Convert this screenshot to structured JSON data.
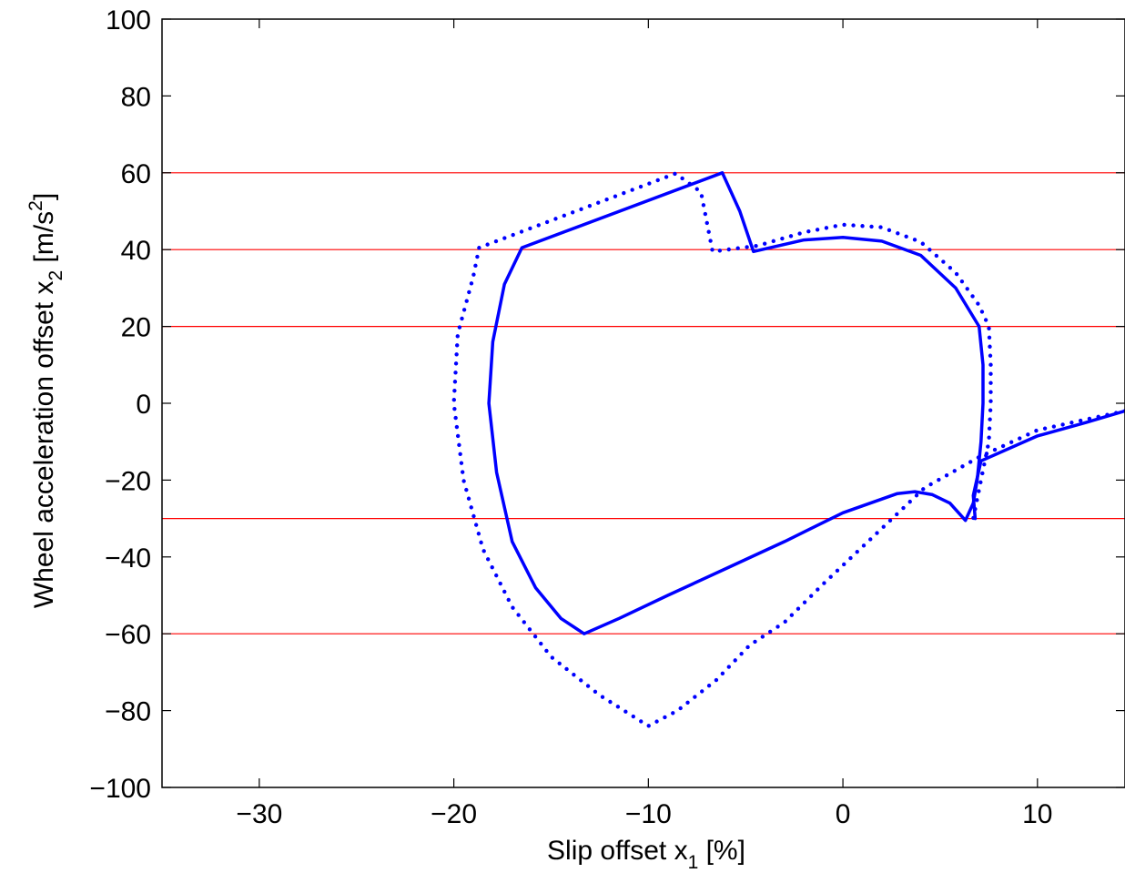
{
  "chart_data": {
    "type": "scatter",
    "title": "",
    "xlabel": {
      "main": "Slip offset x",
      "sub": "1",
      "tail": " [%]"
    },
    "ylabel": {
      "main": "Wheel acceleration offset x",
      "sub": "2",
      "mid": " [m/s",
      "sup": "2",
      "tail": "]"
    },
    "xlim": [
      -35,
      14.5
    ],
    "ylim": [
      -100,
      100
    ],
    "xticks": [
      -30,
      -20,
      -10,
      0,
      10
    ],
    "xtick_labels": [
      "−30",
      "−20",
      "−10",
      "0",
      "10"
    ],
    "yticks": [
      100,
      80,
      60,
      40,
      20,
      0,
      -20,
      -40,
      -60,
      -80,
      -100
    ],
    "ytick_labels": [
      "100",
      "80",
      "60",
      "40",
      "20",
      "0",
      "−20",
      "−40",
      "−60",
      "−80",
      "−100"
    ],
    "grid": false,
    "legend": "none",
    "threshold_lines": {
      "color": "#ff0000",
      "y": [
        60,
        40,
        20,
        -30,
        -60
      ]
    },
    "series": [
      {
        "style": "dots",
        "color": "#0000ff",
        "points": [
          [
            14.5,
            -2
          ],
          [
            10,
            -7
          ],
          [
            7,
            -14
          ],
          [
            4.2,
            -22
          ],
          [
            1.5,
            -35
          ],
          [
            -1,
            -47
          ],
          [
            -3,
            -57
          ],
          [
            -4.8,
            -63
          ],
          [
            -6.5,
            -72
          ],
          [
            -8.5,
            -80
          ],
          [
            -10,
            -84
          ],
          [
            -12.5,
            -76
          ],
          [
            -15,
            -66
          ],
          [
            -17,
            -53
          ],
          [
            -18.5,
            -38
          ],
          [
            -19.5,
            -20
          ],
          [
            -20,
            0
          ],
          [
            -19.8,
            18
          ],
          [
            -19,
            33
          ],
          [
            -18.7,
            40.5
          ],
          [
            -8.6,
            59.8
          ],
          [
            -7.3,
            55
          ],
          [
            -6.7,
            39.5
          ],
          [
            -4.4,
            41
          ],
          [
            -2,
            44.5
          ],
          [
            0,
            46.5
          ],
          [
            2,
            45.8
          ],
          [
            4,
            42
          ],
          [
            5.8,
            34
          ],
          [
            7,
            25.5
          ],
          [
            7.5,
            20
          ],
          [
            7.6,
            10
          ],
          [
            7.6,
            0
          ],
          [
            7.5,
            -10
          ],
          [
            7.1,
            -20
          ],
          [
            6.7,
            -30
          ]
        ]
      },
      {
        "style": "line",
        "color": "#0000ff",
        "points": [
          [
            6.3,
            -30.5
          ],
          [
            5.5,
            -26
          ],
          [
            4.6,
            -23.8
          ],
          [
            3.7,
            -23
          ],
          [
            2.8,
            -23.5
          ],
          [
            0,
            -28.5
          ],
          [
            -3,
            -36
          ],
          [
            -6,
            -43
          ],
          [
            -9,
            -50
          ],
          [
            -11.5,
            -56
          ],
          [
            -13.3,
            -60
          ],
          [
            -14.5,
            -56
          ],
          [
            -15.8,
            -48
          ],
          [
            -17,
            -36
          ],
          [
            -17.8,
            -18
          ],
          [
            -18.2,
            0
          ],
          [
            -18,
            16
          ],
          [
            -17.4,
            31
          ],
          [
            -16.5,
            40.5
          ],
          [
            -6.2,
            60
          ],
          [
            -5.3,
            50
          ],
          [
            -4.6,
            39.5
          ],
          [
            -2,
            42.5
          ],
          [
            0,
            43.2
          ],
          [
            2,
            42.2
          ],
          [
            4,
            38.5
          ],
          [
            5.8,
            30
          ],
          [
            7,
            20
          ],
          [
            7.2,
            10
          ],
          [
            7.2,
            0
          ],
          [
            7.1,
            -10
          ],
          [
            6.9,
            -20
          ],
          [
            6.7,
            -26
          ],
          [
            6.3,
            -30.5
          ]
        ]
      },
      {
        "style": "line",
        "color": "#0000ff",
        "points": [
          [
            6.8,
            -30
          ],
          [
            6.7,
            -24
          ],
          [
            7.1,
            -15
          ],
          [
            10,
            -8.5
          ],
          [
            12.5,
            -5
          ],
          [
            14.5,
            -2
          ]
        ]
      }
    ]
  }
}
